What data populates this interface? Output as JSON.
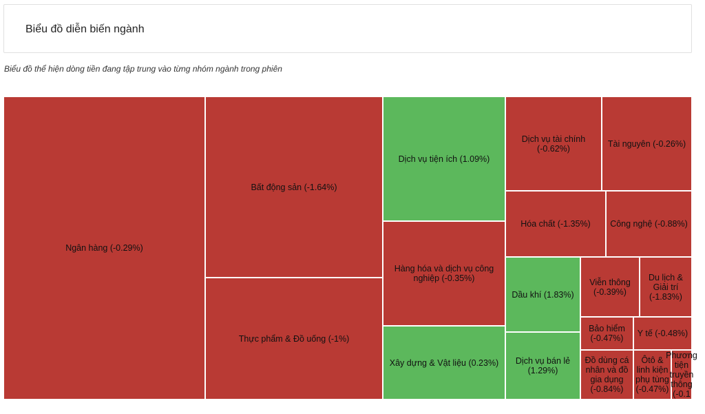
{
  "header": {
    "title": "Biểu đồ diễn biến ngành"
  },
  "subtitle": "Biểu đồ thể hiện dòng tiền đang tập trung vào từng nhóm ngành trong phiên",
  "colors": {
    "negative": "#b93a34",
    "positive": "#5cb85c"
  },
  "chart_data": {
    "type": "treemap",
    "title": "",
    "items": [
      {
        "label": "Ngân hàng (-0.29%)",
        "name": "Ngân hàng",
        "change": -0.29
      },
      {
        "label": "Bất động sản (-1.64%)",
        "name": "Bất động sản",
        "change": -1.64
      },
      {
        "label": "Thực phẩm & Đồ uống (-1%)",
        "name": "Thực phẩm & Đồ uống",
        "change": -1
      },
      {
        "label": "Dịch vụ tiện ích (1.09%)",
        "name": "Dịch vụ tiện ích",
        "change": 1.09
      },
      {
        "label": "Hàng hóa và dịch vụ công nghiệp (-0.35%)",
        "name": "Hàng hóa và dịch vụ công nghiệp",
        "change": -0.35
      },
      {
        "label": "Xây dựng & Vật liệu (0.23%)",
        "name": "Xây dựng & Vật liệu",
        "change": 0.23
      },
      {
        "label": "Dịch vụ tài chính (-0.62%)",
        "name": "Dịch vụ tài chính",
        "change": -0.62
      },
      {
        "label": "Tài nguyên (-0.26%)",
        "name": "Tài nguyên",
        "change": -0.26
      },
      {
        "label": "Hóa chất (-1.35%)",
        "name": "Hóa chất",
        "change": -1.35
      },
      {
        "label": "Công nghệ (-0.88%)",
        "name": "Công nghệ",
        "change": -0.88
      },
      {
        "label": "Dầu khí (1.83%)",
        "name": "Dầu khí",
        "change": 1.83
      },
      {
        "label": "Dịch vụ bán lẻ (1.29%)",
        "name": "Dịch vụ bán lẻ",
        "change": 1.29
      },
      {
        "label": "Viễn thông (-0.39%)",
        "name": "Viễn thông",
        "change": -0.39
      },
      {
        "label": "Du lịch & Giải trí (-1.83%)",
        "name": "Du lịch & Giải trí",
        "change": -1.83
      },
      {
        "label": "Bảo hiểm (-0.47%)",
        "name": "Bảo hiểm",
        "change": -0.47
      },
      {
        "label": "Y tế (-0.48%)",
        "name": "Y tế",
        "change": -0.48
      },
      {
        "label": "Đồ dùng cá nhân và đồ gia dụng (-0.84%)",
        "name": "Đồ dùng cá nhân và đồ gia dụng",
        "change": -0.84
      },
      {
        "label": "Ôtô & linh kiện phụ tùng (-0.47%)",
        "name": "Ôtô & linh kiện phụ tùng",
        "change": -0.47
      },
      {
        "label": "Phương tiện truyền thông (-0.1",
        "name": "Phương tiện truyền thông",
        "change": -0.1
      }
    ]
  }
}
